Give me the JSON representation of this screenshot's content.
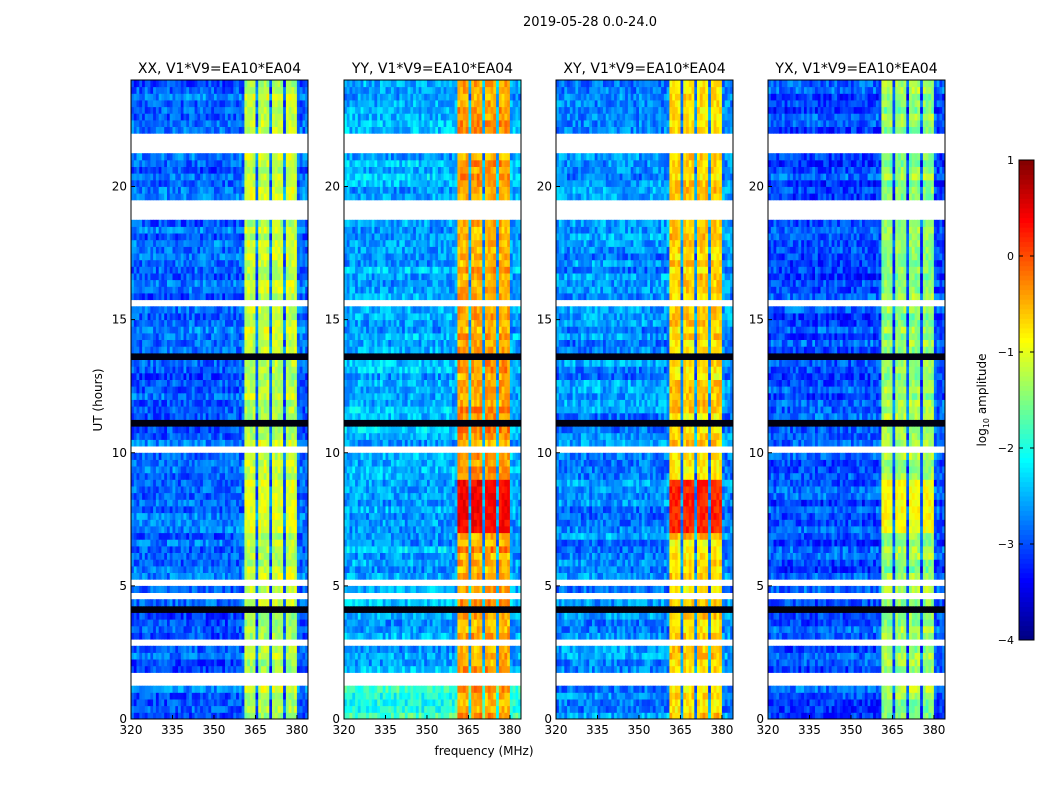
{
  "chart_data": {
    "type": "heatmap",
    "suptitle": "2019-05-28 0.0-24.0",
    "xlabel": "frequency (MHz)",
    "ylabel": "UT (hours)",
    "xlim": [
      320,
      384
    ],
    "ylim": [
      0,
      24
    ],
    "xticks": [
      320,
      335,
      350,
      365,
      380
    ],
    "yticks": [
      0,
      5,
      10,
      15,
      20
    ],
    "colorbar": {
      "label_main": "log",
      "label_sub": "10",
      "label_rest": " amplitude",
      "range": [
        -4,
        1
      ],
      "ticks": [
        1,
        0,
        -1,
        -2,
        -3,
        -4
      ],
      "colormap": "jet"
    },
    "hot_band_mhz": [
      361,
      381
    ],
    "hot_band_gaps_mhz": [
      365.5,
      370.5,
      375.5,
      380.5
    ],
    "flagged_white_hours": [
      [
        21.3,
        22.1
      ],
      [
        18.75,
        19.45
      ],
      [
        15.6,
        15.8
      ],
      [
        23.3,
        23.35
      ],
      [
        22.7,
        22.75
      ],
      [
        17.0,
        17.05
      ],
      [
        16.5,
        16.55
      ],
      [
        14.5,
        14.55
      ],
      [
        12.9,
        12.95
      ],
      [
        10.0,
        10.2
      ],
      [
        8.5,
        8.6
      ],
      [
        8.0,
        8.1
      ],
      [
        6.2,
        6.3
      ],
      [
        5.1,
        5.2
      ],
      [
        4.6,
        4.65
      ],
      [
        3.3,
        3.35
      ],
      [
        2.7,
        3.0
      ],
      [
        2.0,
        2.1
      ],
      [
        1.6,
        1.7
      ],
      [
        1.2,
        1.4
      ]
    ],
    "flagged_dark_hours": [
      [
        11.0,
        11.3
      ],
      [
        2.45,
        2.55
      ],
      [
        4.1,
        4.2
      ],
      [
        13.6,
        13.7
      ]
    ],
    "panels": [
      {
        "title": "XX, V1*V9=EA10*EA04",
        "base_level": -2.9,
        "hot_level": -1.2,
        "rfi_peak_level": -1.0
      },
      {
        "title": "YY, V1*V9=EA10*EA04",
        "base_level": -2.5,
        "hot_level": -0.4,
        "rfi_peak_level": 0.4
      },
      {
        "title": "XY, V1*V9=EA10*EA04",
        "base_level": -2.7,
        "hot_level": -0.7,
        "rfi_peak_level": 0.2
      },
      {
        "title": "YX, V1*V9=EA10*EA04",
        "base_level": -3.0,
        "hot_level": -1.4,
        "rfi_peak_level": -0.9
      }
    ]
  }
}
